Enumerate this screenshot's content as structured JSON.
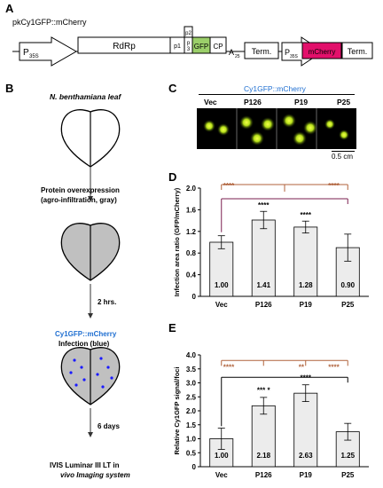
{
  "panelA": {
    "letter": "A",
    "construct": "pkCy1GFP::mCherry",
    "p35s_1": "P",
    "p35s_1_sub": "35S",
    "rdrp": "RdRp",
    "p1": "p1",
    "p2": "p2",
    "p3_top": "p",
    "p3_bottom": "3",
    "gfp": "GFP",
    "cp": "CP",
    "a25": "A",
    "a25_sub": "25",
    "term1": "Term.",
    "p35s_2": "P",
    "p35s_2_sub": "35S",
    "mcherry": "mCherry",
    "term2": "Term.",
    "colors": {
      "gfp": "#9bcf6a",
      "mcherry": "#e2106b"
    }
  },
  "panelB": {
    "letter": "B",
    "leaf_title": "N. benthamiana leaf",
    "step1_line1": "Protein overexpression",
    "step1_line2": "(agro-infiltration, gray)",
    "time1": "2 hrs.",
    "step2_line1": "Cy1GFP::mCherry",
    "step2_line2": "Infection (blue)",
    "time2": "6 days",
    "step3_line1": "IVIS Luminar III LT in",
    "step3_line2": "vivo Imaging system",
    "colors": {
      "infiltration": "#c0c0c0",
      "infection_dots": "#1a1aff",
      "accent_text": "#1f6fd1"
    }
  },
  "panelC": {
    "letter": "C",
    "title": "Cy1GFP::mCherry",
    "labels": [
      "Vec",
      "P126",
      "P19",
      "P25"
    ],
    "scale": "0.5 cm"
  },
  "panelD": {
    "letter": "D",
    "ylabel": "Infection area ratio (GFP/mCherry)",
    "sig_top_left": "****",
    "sig_top_right": "****",
    "sig_mid_1": "****",
    "sig_mid_2": "****",
    "chart_data": {
      "type": "bar",
      "categories": [
        "Vec",
        "P126",
        "P19",
        "P25"
      ],
      "values": [
        1.0,
        1.41,
        1.28,
        0.9
      ],
      "value_labels": [
        "1.00",
        "1.41",
        "1.28",
        "0.90"
      ],
      "errors": [
        0.12,
        0.16,
        0.11,
        0.25
      ],
      "yticks": [
        "0",
        "0.4",
        "0.8",
        "1.2",
        "1.6",
        "2.0"
      ],
      "ylim": [
        0,
        2.0
      ],
      "ylabel": "Infection area ratio (GFP/mCherry)"
    }
  },
  "panelE": {
    "letter": "E",
    "ylabel": "Relative Cy1GFP signal/foci",
    "sig_top_1": "****",
    "sig_top_2": "**",
    "sig_top_3": "****",
    "sig_mid_1": "*** *",
    "sig_mid_2": "****",
    "chart_data": {
      "type": "bar",
      "categories": [
        "Vec",
        "P126",
        "P19",
        "P25"
      ],
      "values": [
        1.0,
        2.18,
        2.63,
        1.25
      ],
      "value_labels": [
        "1.00",
        "2.18",
        "2.63",
        "1.25"
      ],
      "errors": [
        0.38,
        0.3,
        0.3,
        0.3
      ],
      "yticks": [
        "0",
        "0.5",
        "1.0",
        "1.5",
        "2.0",
        "2.5",
        "3.0",
        "3.5",
        "4.0"
      ],
      "ylim": [
        0,
        4.0
      ],
      "ylabel": "Relative Cy1GFP signal/foci"
    }
  }
}
